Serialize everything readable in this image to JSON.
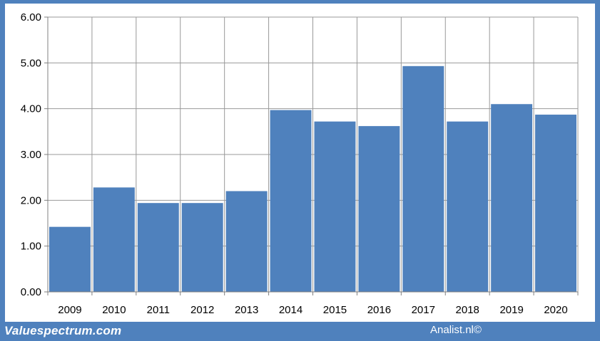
{
  "chart_data": {
    "type": "bar",
    "categories": [
      "2009",
      "2010",
      "2011",
      "2012",
      "2013",
      "2014",
      "2015",
      "2016",
      "2017",
      "2018",
      "2019",
      "2020"
    ],
    "values": [
      1.42,
      2.28,
      1.94,
      1.94,
      2.2,
      3.97,
      3.72,
      3.62,
      4.93,
      3.72,
      4.1,
      3.87
    ],
    "title": "",
    "xlabel": "",
    "ylabel": "",
    "ylim": [
      0,
      6
    ],
    "yticks": [
      "0.00",
      "1.00",
      "2.00",
      "3.00",
      "4.00",
      "5.00",
      "6.00"
    ],
    "grid": true,
    "colors": {
      "bar": "#4f81bd",
      "grid": "#999999",
      "frame": "#4f81bd"
    }
  },
  "footer": {
    "left_label": "Valuespectrum.com",
    "right_label": "Analist.nl©"
  }
}
